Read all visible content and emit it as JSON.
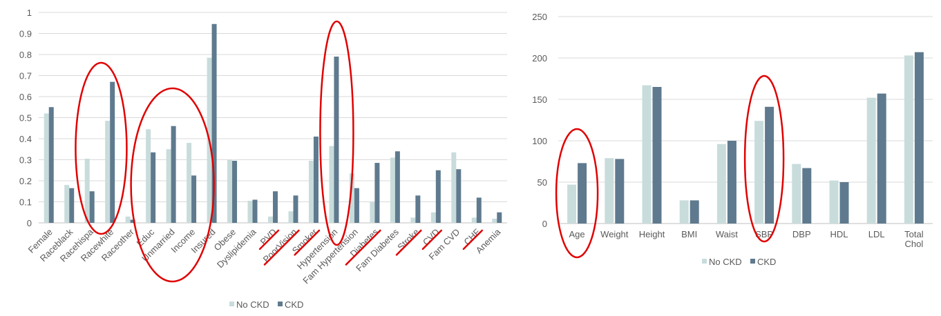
{
  "colors": {
    "no_ckd": "#c9dcdc",
    "ckd": "#5f7a8e",
    "grid": "#d9d9d9",
    "axis_text": "#595959",
    "annotation": "#e00000"
  },
  "chart_data": [
    {
      "type": "bar",
      "categories": [
        "Female",
        "Raceblack",
        "Racehispa",
        "Racewhite",
        "Raceother",
        "Educ",
        "Unmarried",
        "Income",
        "Insured",
        "Obese",
        "Dyslipidemia",
        "PVD",
        "PoorVision",
        "Smoker",
        "Hypertension",
        "Fam Hypertension",
        "Diabetes",
        "Fam Diabetes",
        "Stroke",
        "CVD",
        "Fam CVD",
        "CHF",
        "Anemia"
      ],
      "series": [
        {
          "name": "No CKD",
          "values": [
            0.52,
            0.18,
            0.305,
            0.485,
            0.03,
            0.445,
            0.35,
            0.38,
            0.785,
            0.3,
            0.105,
            0.03,
            0.055,
            0.295,
            0.365,
            0.235,
            0.1,
            0.31,
            0.025,
            0.05,
            0.335,
            0.025,
            0.02
          ]
        },
        {
          "name": "CKD",
          "values": [
            0.55,
            0.165,
            0.15,
            0.67,
            0.015,
            0.335,
            0.46,
            0.225,
            0.945,
            0.295,
            0.11,
            0.15,
            0.13,
            0.41,
            0.79,
            0.165,
            0.285,
            0.34,
            0.13,
            0.25,
            0.255,
            0.12,
            0.05
          ]
        }
      ],
      "yticks": [
        "0",
        "0.1",
        "0.2",
        "0.3",
        "0.4",
        "0.5",
        "0.6",
        "0.7",
        "0.8",
        "0.9",
        "1"
      ],
      "ylim": [
        0,
        1
      ],
      "grid": true,
      "legend": "bottom-center",
      "annotations": {
        "circled": [
          [
            "Racehispa",
            "Racewhite"
          ],
          [
            "Educ",
            "Unmarried",
            "Income"
          ],
          [
            "Hypertension"
          ]
        ],
        "underlined": [
          "PVD",
          "PoorVision",
          "Smoker",
          "Diabetes",
          "Stroke",
          "CVD",
          "CHF"
        ]
      }
    },
    {
      "type": "bar",
      "categories": [
        "Age",
        "Weight",
        "Height",
        "BMI",
        "Waist",
        "SBP",
        "DBP",
        "HDL",
        "LDL",
        "Total Chol"
      ],
      "series": [
        {
          "name": "No CKD",
          "values": [
            47,
            79,
            167,
            28,
            96,
            124,
            72,
            52,
            152,
            203
          ]
        },
        {
          "name": "CKD",
          "values": [
            73,
            78,
            165,
            28,
            100,
            141,
            67,
            50,
            157,
            207
          ]
        }
      ],
      "yticks": [
        "0",
        "50",
        "100",
        "150",
        "200",
        "250"
      ],
      "ylim": [
        0,
        250
      ],
      "grid": true,
      "legend": "bottom-center",
      "annotations": {
        "circled": [
          [
            "Age"
          ],
          [
            "SBP"
          ]
        ]
      }
    }
  ]
}
